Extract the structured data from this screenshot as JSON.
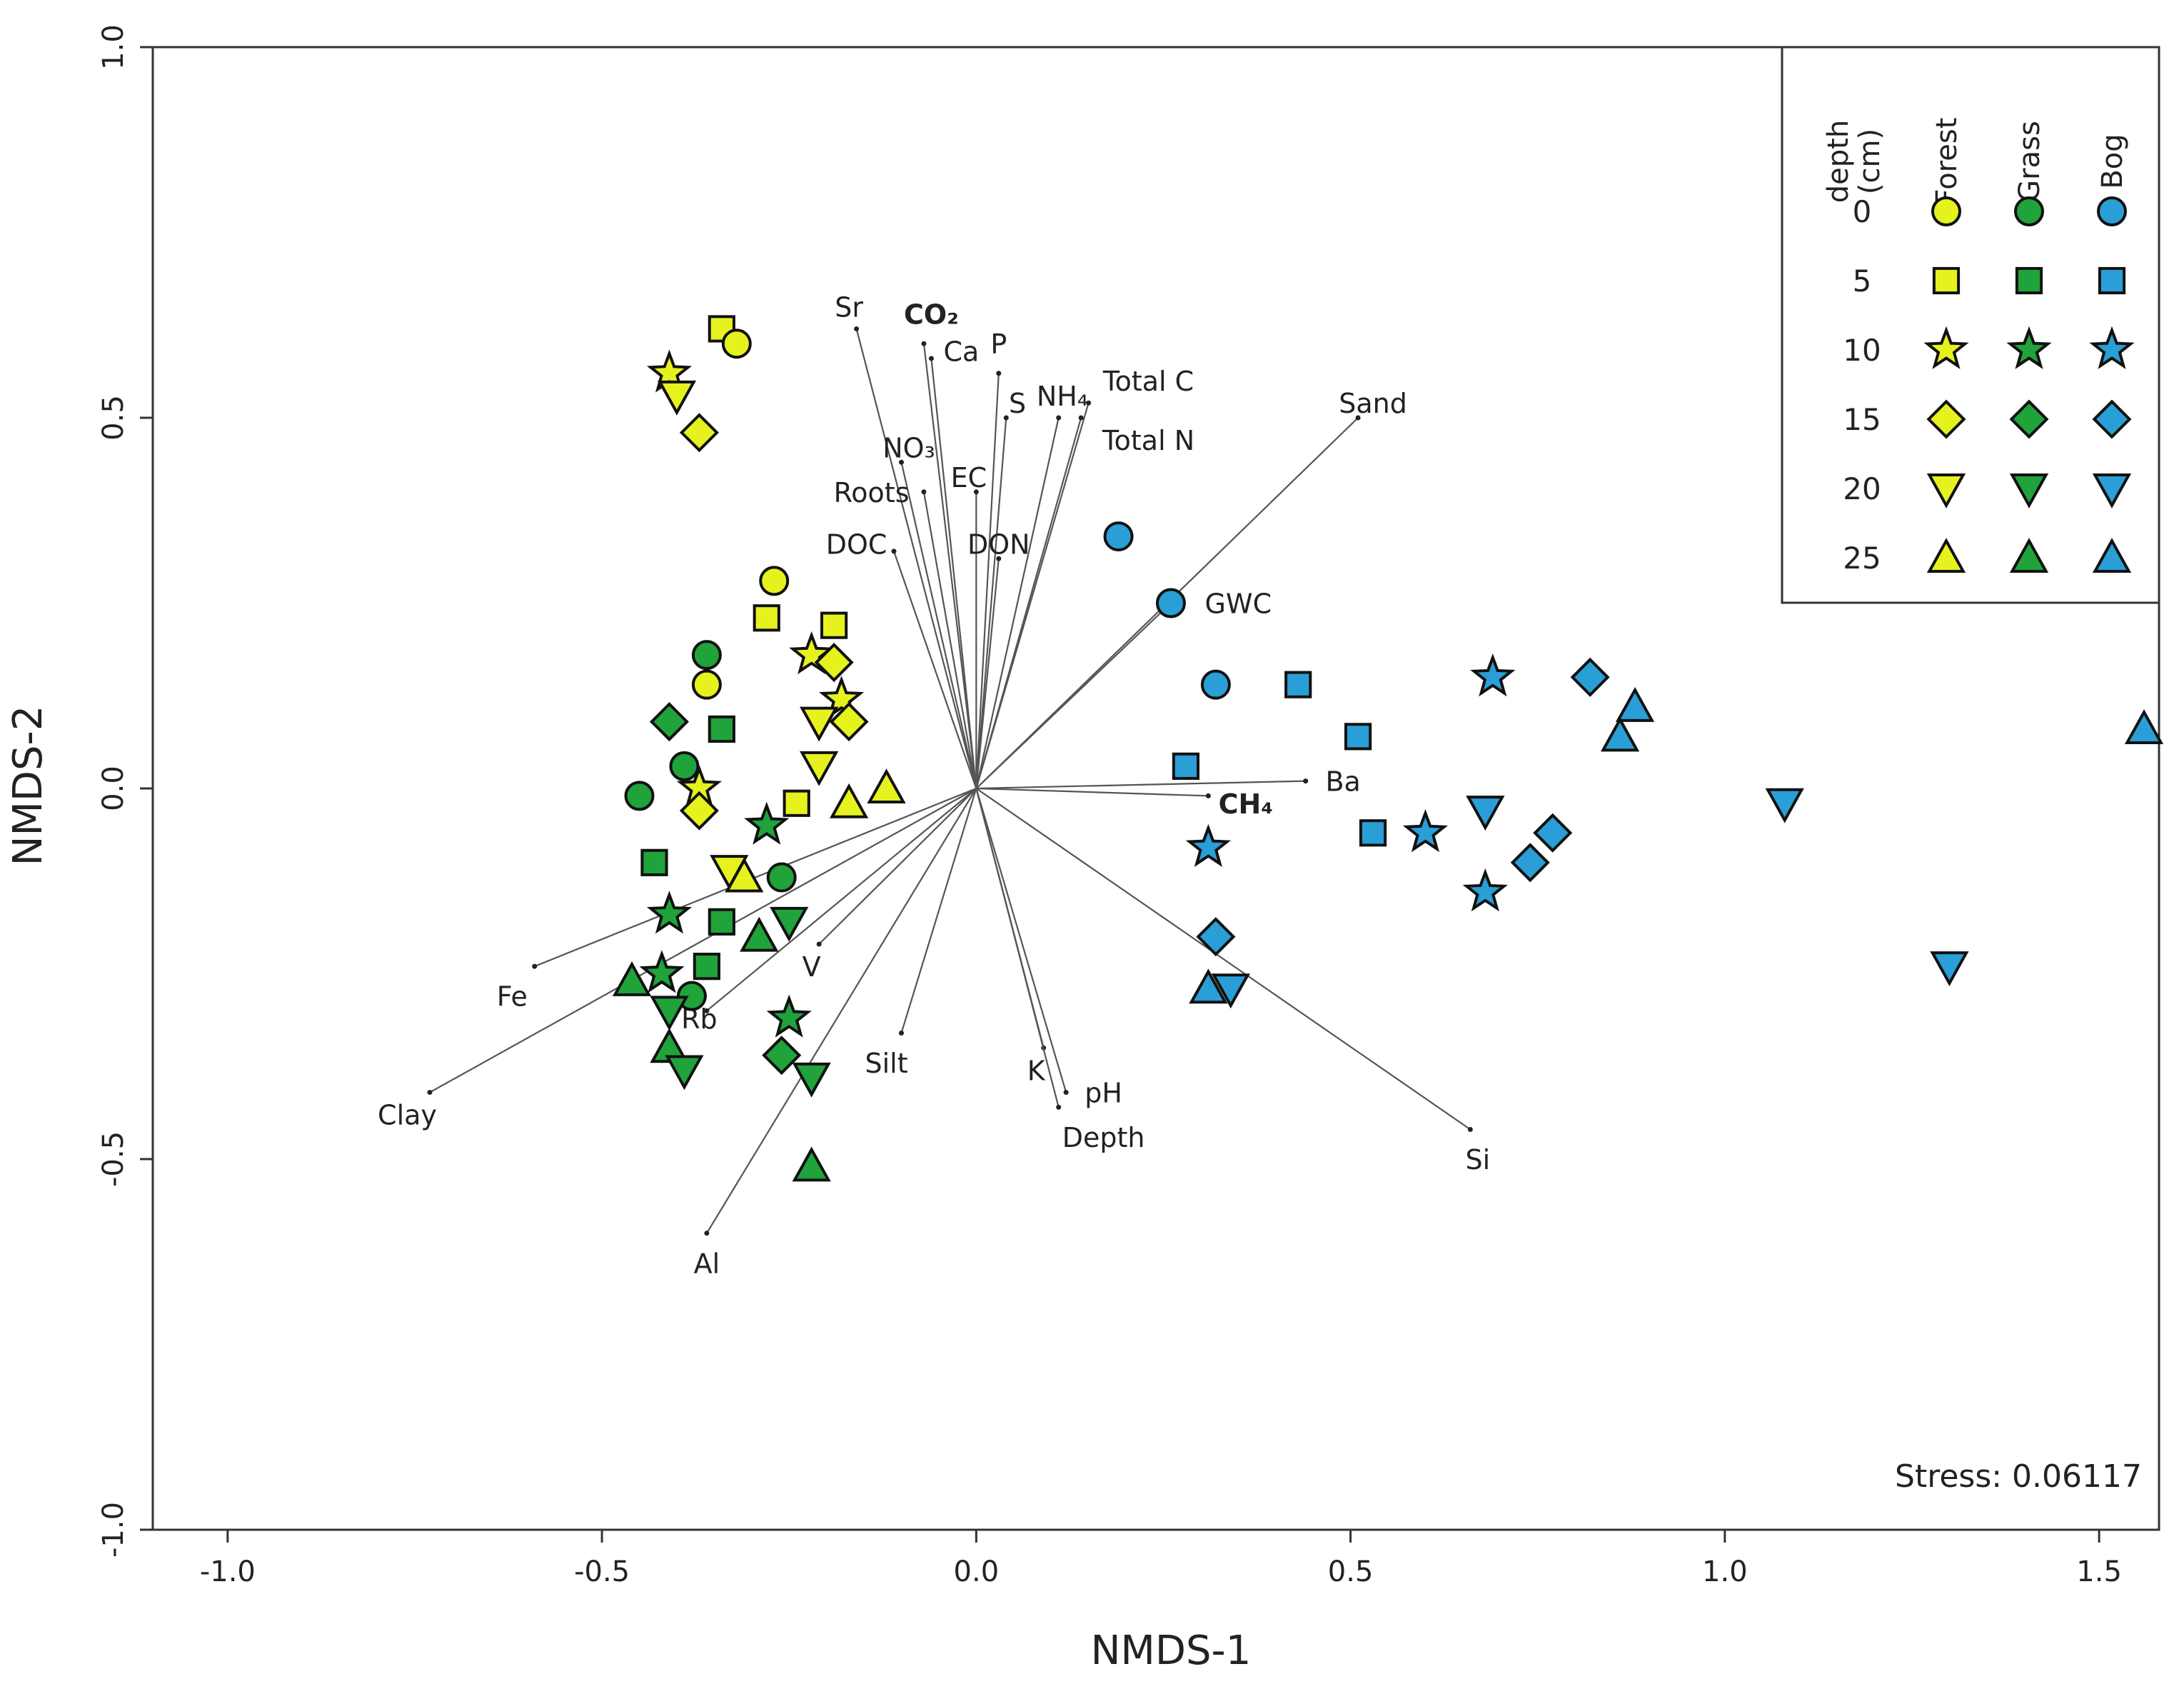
{
  "chart_data": {
    "type": "scatter",
    "title": "",
    "xlabel": "NMDS-1",
    "ylabel": "NMDS-2",
    "xlim": [
      -1.1,
      1.58
    ],
    "ylim": [
      -1.0,
      1.0
    ],
    "xticks": [
      "-1.0",
      "-0.5",
      "0.0",
      "0.5",
      "1.0",
      "1.5"
    ],
    "yticks": [
      "1.0",
      "0.5",
      "0.0",
      "-0.5",
      "-1.0"
    ],
    "stress_label": "Stress: 0.06117",
    "colors": {
      "Forest": "#e6f21e",
      "Grass": "#1fa33a",
      "Bog": "#2a9ed6"
    },
    "legend": {
      "position": "top-right",
      "depth_label": "depth",
      "depth_unit": "(cm)",
      "groups": [
        "Forest",
        "Grass",
        "Bog"
      ],
      "depths": [
        {
          "depth": "0",
          "shape": "circle"
        },
        {
          "depth": "5",
          "shape": "square"
        },
        {
          "depth": "10",
          "shape": "star"
        },
        {
          "depth": "15",
          "shape": "diamond"
        },
        {
          "depth": "20",
          "shape": "triangle-down"
        },
        {
          "depth": "25",
          "shape": "triangle-up"
        }
      ]
    },
    "vectors": [
      {
        "label": "Sr",
        "x": -0.16,
        "y": 0.62,
        "lx": -0.17,
        "ly": 0.65,
        "color": "#222"
      },
      {
        "label": "CO₂",
        "x": -0.07,
        "y": 0.6,
        "lx": -0.06,
        "ly": 0.64,
        "color": "#e8161b",
        "bold": true
      },
      {
        "label": "Ca",
        "x": -0.06,
        "y": 0.58,
        "lx": -0.02,
        "ly": 0.59,
        "color": "#222"
      },
      {
        "label": "P",
        "x": 0.03,
        "y": 0.56,
        "lx": 0.03,
        "ly": 0.6,
        "color": "#222"
      },
      {
        "label": "S",
        "x": 0.04,
        "y": 0.5,
        "lx": 0.055,
        "ly": 0.52,
        "color": "#222"
      },
      {
        "label": "NH₄",
        "x": 0.11,
        "y": 0.5,
        "lx": 0.115,
        "ly": 0.53,
        "color": "#222"
      },
      {
        "label": "Total C",
        "x": 0.15,
        "y": 0.52,
        "lx": 0.23,
        "ly": 0.55,
        "color": "#222"
      },
      {
        "label": "Total N",
        "x": 0.14,
        "y": 0.5,
        "lx": 0.23,
        "ly": 0.47,
        "color": "#222"
      },
      {
        "label": "NO₃",
        "x": -0.1,
        "y": 0.44,
        "lx": -0.09,
        "ly": 0.46,
        "color": "#222"
      },
      {
        "label": "EC",
        "x": 0.0,
        "y": 0.4,
        "lx": -0.01,
        "ly": 0.42,
        "color": "#222"
      },
      {
        "label": "Roots",
        "x": -0.07,
        "y": 0.4,
        "lx": -0.14,
        "ly": 0.4,
        "color": "#222"
      },
      {
        "label": "DOC",
        "x": -0.11,
        "y": 0.32,
        "lx": -0.16,
        "ly": 0.33,
        "color": "#222"
      },
      {
        "label": "DON",
        "x": 0.03,
        "y": 0.31,
        "lx": 0.03,
        "ly": 0.33,
        "color": "#222"
      },
      {
        "label": "Sand",
        "x": 0.51,
        "y": 0.5,
        "lx": 0.53,
        "ly": 0.52,
        "color": "#222"
      },
      {
        "label": "GWC",
        "x": 0.26,
        "y": 0.25,
        "lx": 0.35,
        "ly": 0.25,
        "color": "#222"
      },
      {
        "label": "Ba",
        "x": 0.44,
        "y": 0.01,
        "lx": 0.49,
        "ly": 0.01,
        "color": "#222"
      },
      {
        "label": "CH₄",
        "x": 0.31,
        "y": -0.01,
        "lx": 0.36,
        "ly": -0.02,
        "color": "#e8161b",
        "bold": true
      },
      {
        "label": "Si",
        "x": 0.66,
        "y": -0.46,
        "lx": 0.67,
        "ly": -0.5,
        "color": "#222"
      },
      {
        "label": "K",
        "x": 0.09,
        "y": -0.35,
        "lx": 0.08,
        "ly": -0.38,
        "color": "#222"
      },
      {
        "label": "pH",
        "x": 0.12,
        "y": -0.41,
        "lx": 0.17,
        "ly": -0.41,
        "color": "#222"
      },
      {
        "label": "Depth",
        "x": 0.11,
        "y": -0.43,
        "lx": 0.17,
        "ly": -0.47,
        "color": "#222"
      },
      {
        "label": "Silt",
        "x": -0.1,
        "y": -0.33,
        "lx": -0.12,
        "ly": -0.37,
        "color": "#222"
      },
      {
        "label": "V",
        "x": -0.21,
        "y": -0.21,
        "lx": -0.22,
        "ly": -0.24,
        "color": "#222"
      },
      {
        "label": "Rb",
        "x": -0.36,
        "y": -0.3,
        "lx": -0.37,
        "ly": -0.31,
        "color": "#222"
      },
      {
        "label": "Fe",
        "x": -0.59,
        "y": -0.24,
        "lx": -0.62,
        "ly": -0.28,
        "color": "#222"
      },
      {
        "label": "Clay",
        "x": -0.73,
        "y": -0.41,
        "lx": -0.76,
        "ly": -0.44,
        "color": "#222"
      },
      {
        "label": "Al",
        "x": -0.36,
        "y": -0.6,
        "lx": -0.36,
        "ly": -0.64,
        "color": "#222"
      }
    ],
    "series": [
      {
        "name": "Forest",
        "points": [
          {
            "x": -0.34,
            "y": 0.62,
            "shape": "square"
          },
          {
            "x": -0.32,
            "y": 0.6,
            "shape": "circle"
          },
          {
            "x": -0.41,
            "y": 0.56,
            "shape": "star"
          },
          {
            "x": -0.4,
            "y": 0.53,
            "shape": "triangle-down"
          },
          {
            "x": -0.37,
            "y": 0.48,
            "shape": "diamond"
          },
          {
            "x": -0.27,
            "y": 0.28,
            "shape": "circle"
          },
          {
            "x": -0.28,
            "y": 0.23,
            "shape": "square"
          },
          {
            "x": -0.19,
            "y": 0.22,
            "shape": "square"
          },
          {
            "x": -0.22,
            "y": 0.18,
            "shape": "star"
          },
          {
            "x": -0.19,
            "y": 0.17,
            "shape": "diamond"
          },
          {
            "x": -0.36,
            "y": 0.14,
            "shape": "circle"
          },
          {
            "x": -0.18,
            "y": 0.12,
            "shape": "star"
          },
          {
            "x": -0.21,
            "y": 0.09,
            "shape": "triangle-down"
          },
          {
            "x": -0.17,
            "y": 0.09,
            "shape": "diamond"
          },
          {
            "x": -0.21,
            "y": 0.03,
            "shape": "triangle-down"
          },
          {
            "x": -0.37,
            "y": 0.0,
            "shape": "star"
          },
          {
            "x": -0.37,
            "y": -0.03,
            "shape": "diamond"
          },
          {
            "x": -0.12,
            "y": 0.0,
            "shape": "triangle-up"
          },
          {
            "x": -0.24,
            "y": -0.02,
            "shape": "square"
          },
          {
            "x": -0.17,
            "y": -0.02,
            "shape": "triangle-up"
          },
          {
            "x": -0.33,
            "y": -0.11,
            "shape": "triangle-down"
          },
          {
            "x": -0.31,
            "y": -0.12,
            "shape": "triangle-up"
          }
        ]
      },
      {
        "name": "Grass",
        "points": [
          {
            "x": -0.36,
            "y": 0.18,
            "shape": "circle"
          },
          {
            "x": -0.41,
            "y": 0.09,
            "shape": "diamond"
          },
          {
            "x": -0.34,
            "y": 0.08,
            "shape": "square"
          },
          {
            "x": -0.39,
            "y": 0.03,
            "shape": "circle"
          },
          {
            "x": -0.45,
            "y": -0.01,
            "shape": "circle"
          },
          {
            "x": -0.28,
            "y": -0.05,
            "shape": "star"
          },
          {
            "x": -0.43,
            "y": -0.1,
            "shape": "square"
          },
          {
            "x": -0.26,
            "y": -0.12,
            "shape": "circle"
          },
          {
            "x": -0.41,
            "y": -0.17,
            "shape": "star"
          },
          {
            "x": -0.34,
            "y": -0.18,
            "shape": "square"
          },
          {
            "x": -0.25,
            "y": -0.18,
            "shape": "triangle-down"
          },
          {
            "x": -0.29,
            "y": -0.2,
            "shape": "triangle-up"
          },
          {
            "x": -0.42,
            "y": -0.25,
            "shape": "star"
          },
          {
            "x": -0.36,
            "y": -0.24,
            "shape": "square"
          },
          {
            "x": -0.46,
            "y": -0.26,
            "shape": "triangle-up"
          },
          {
            "x": -0.38,
            "y": -0.28,
            "shape": "circle"
          },
          {
            "x": -0.41,
            "y": -0.3,
            "shape": "triangle-down"
          },
          {
            "x": -0.25,
            "y": -0.31,
            "shape": "star"
          },
          {
            "x": -0.41,
            "y": -0.35,
            "shape": "triangle-up"
          },
          {
            "x": -0.26,
            "y": -0.36,
            "shape": "diamond"
          },
          {
            "x": -0.39,
            "y": -0.38,
            "shape": "triangle-down"
          },
          {
            "x": -0.22,
            "y": -0.39,
            "shape": "triangle-down"
          },
          {
            "x": -0.22,
            "y": -0.51,
            "shape": "triangle-up"
          }
        ]
      },
      {
        "name": "Bog",
        "points": [
          {
            "x": 0.19,
            "y": 0.34,
            "shape": "circle"
          },
          {
            "x": 0.26,
            "y": 0.25,
            "shape": "circle"
          },
          {
            "x": 0.32,
            "y": 0.14,
            "shape": "circle"
          },
          {
            "x": 0.43,
            "y": 0.14,
            "shape": "square"
          },
          {
            "x": 0.51,
            "y": 0.07,
            "shape": "square"
          },
          {
            "x": 0.28,
            "y": 0.03,
            "shape": "square"
          },
          {
            "x": 0.53,
            "y": -0.06,
            "shape": "square"
          },
          {
            "x": 0.31,
            "y": -0.08,
            "shape": "star"
          },
          {
            "x": 0.6,
            "y": -0.06,
            "shape": "star"
          },
          {
            "x": 0.69,
            "y": 0.15,
            "shape": "star"
          },
          {
            "x": 0.68,
            "y": -0.14,
            "shape": "star"
          },
          {
            "x": 0.82,
            "y": 0.15,
            "shape": "diamond"
          },
          {
            "x": 0.77,
            "y": -0.06,
            "shape": "diamond"
          },
          {
            "x": 0.74,
            "y": -0.1,
            "shape": "diamond"
          },
          {
            "x": 0.32,
            "y": -0.2,
            "shape": "diamond"
          },
          {
            "x": 0.68,
            "y": -0.03,
            "shape": "triangle-down"
          },
          {
            "x": 0.34,
            "y": -0.27,
            "shape": "triangle-down"
          },
          {
            "x": 1.08,
            "y": -0.02,
            "shape": "triangle-down"
          },
          {
            "x": 1.3,
            "y": -0.24,
            "shape": "triangle-down"
          },
          {
            "x": 0.88,
            "y": 0.11,
            "shape": "triangle-up"
          },
          {
            "x": 0.86,
            "y": 0.07,
            "shape": "triangle-up"
          },
          {
            "x": 0.31,
            "y": -0.27,
            "shape": "triangle-up"
          },
          {
            "x": 1.56,
            "y": 0.08,
            "shape": "triangle-up"
          }
        ]
      }
    ]
  }
}
